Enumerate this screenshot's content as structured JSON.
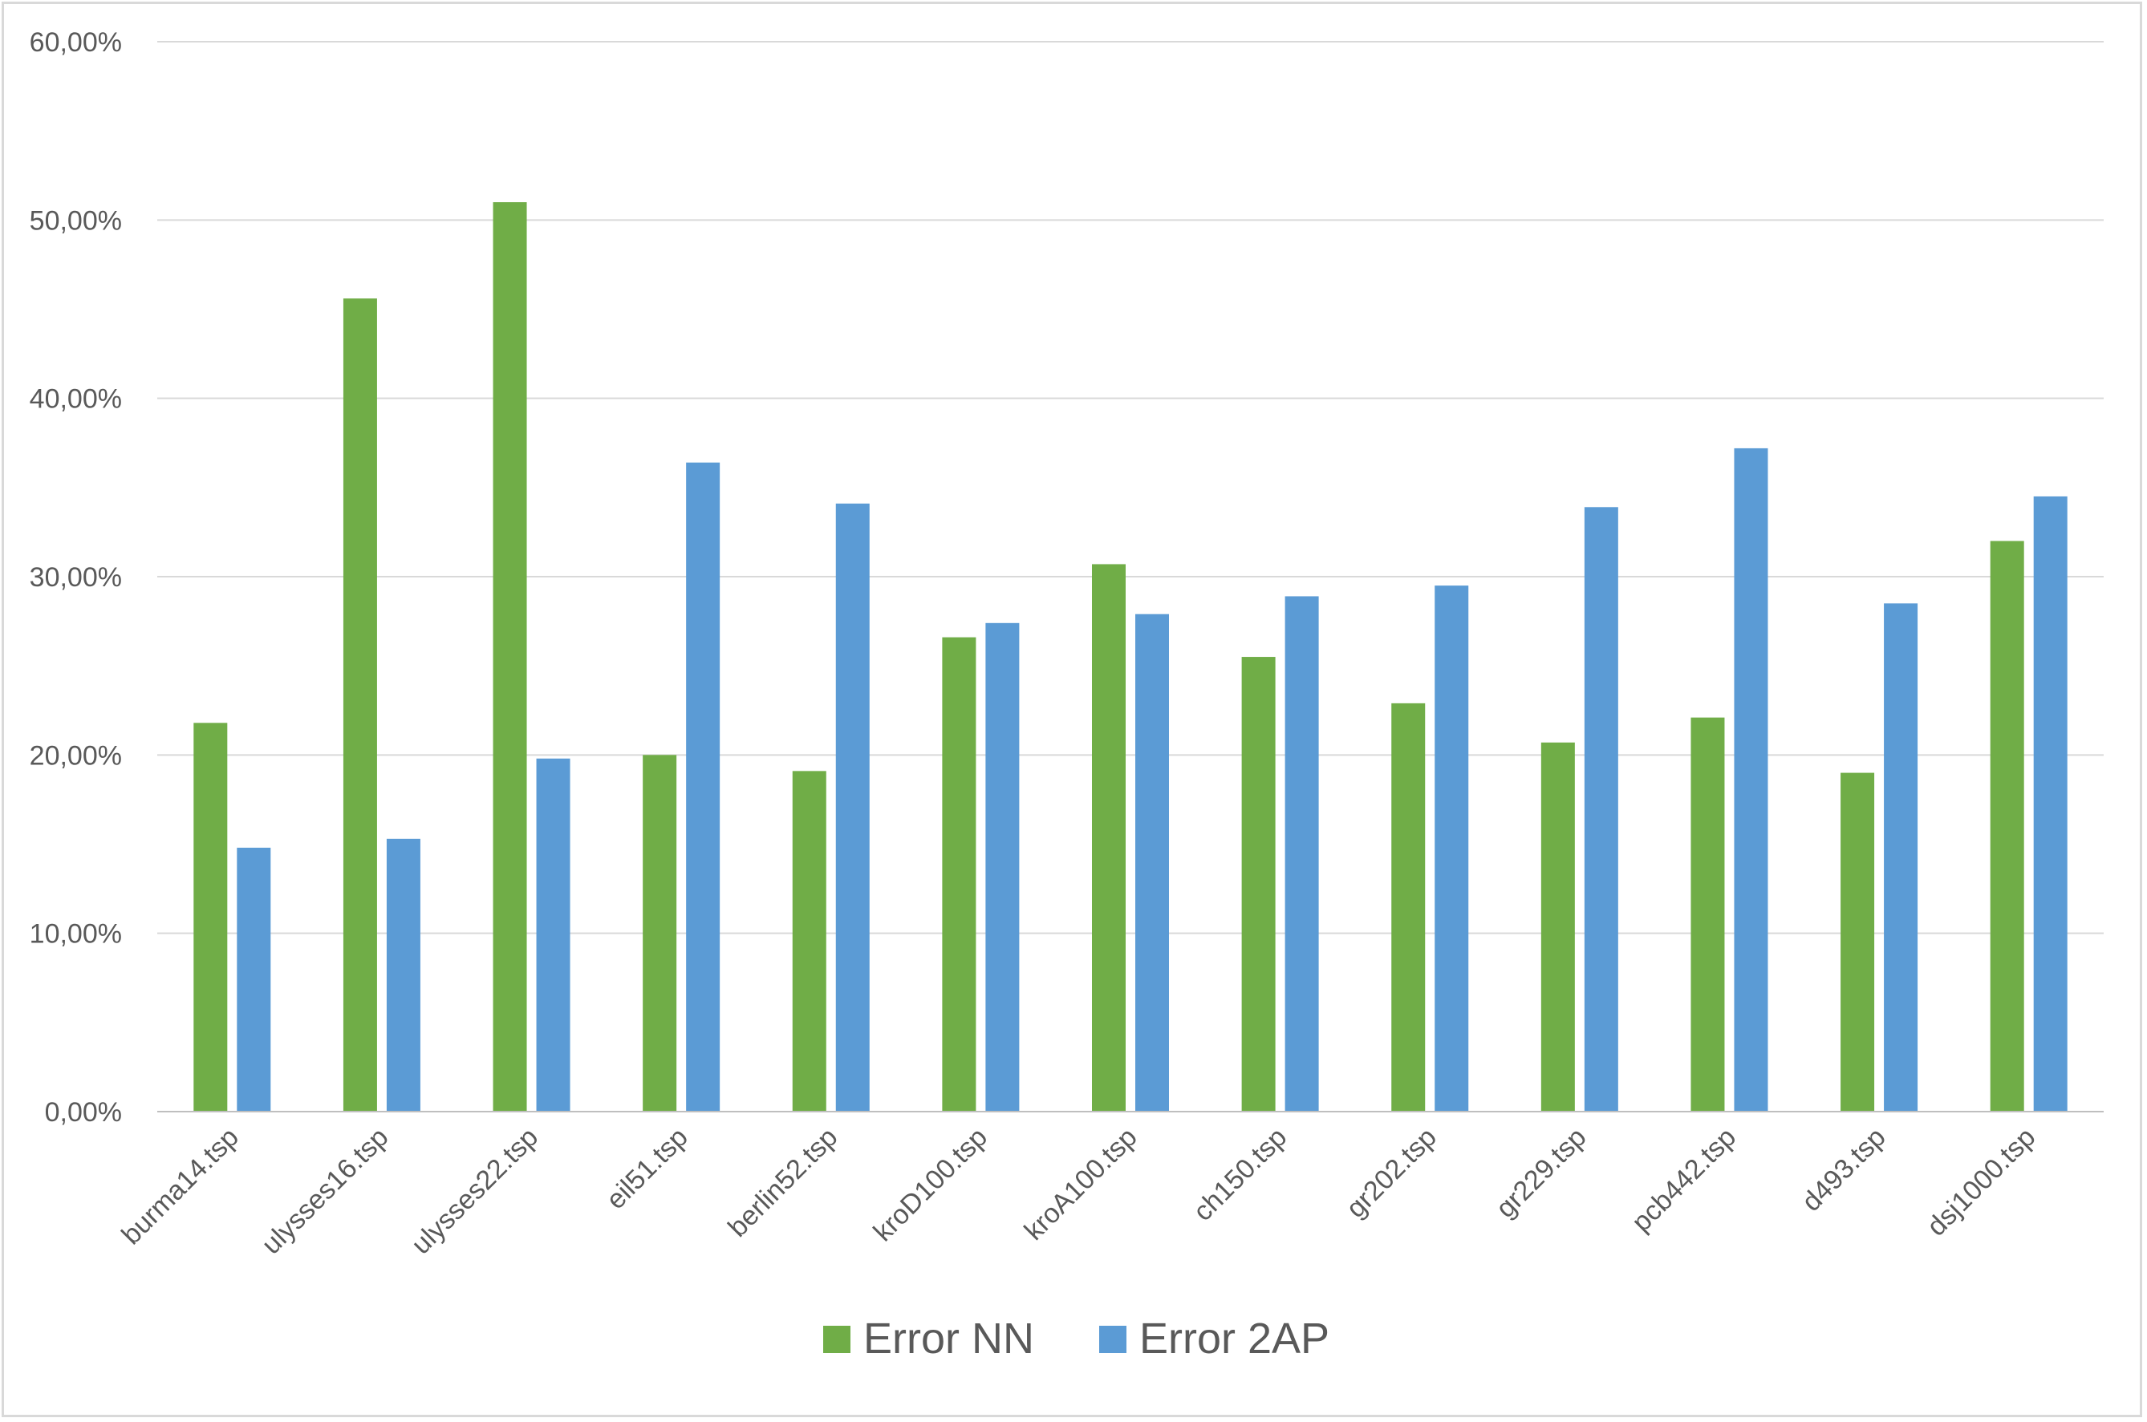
{
  "chart_data": {
    "type": "bar",
    "title": "",
    "xlabel": "",
    "ylabel": "",
    "categories": [
      "burma14.tsp",
      "ulysses16.tsp",
      "ulysses22.tsp",
      "eil51.tsp",
      "berlin52.tsp",
      "kroD100.tsp",
      "kroA100.tsp",
      "ch150.tsp",
      "gr202.tsp",
      "gr229.tsp",
      "pcb442.tsp",
      "d493.tsp",
      "dsj1000.tsp"
    ],
    "series": [
      {
        "name": "Error NN",
        "color": "#70ad47",
        "values": [
          21.8,
          45.6,
          51.0,
          20.0,
          19.1,
          26.6,
          30.7,
          25.5,
          22.9,
          20.7,
          22.1,
          19.0,
          32.0
        ]
      },
      {
        "name": "Error 2AP",
        "color": "#5b9bd5",
        "values": [
          14.8,
          15.3,
          19.8,
          36.4,
          34.1,
          27.4,
          27.9,
          28.9,
          29.5,
          33.9,
          37.2,
          28.5,
          34.5
        ]
      }
    ],
    "ylim": [
      0,
      60
    ],
    "yticks": [
      0,
      10,
      20,
      30,
      40,
      50,
      60
    ],
    "ytick_labels": [
      "0,00%",
      "10,00%",
      "20,00%",
      "30,00%",
      "40,00%",
      "50,00%",
      "60,00%"
    ],
    "grid": true,
    "legend_position": "bottom"
  },
  "colors": {
    "grid": "#d9d9d9",
    "axis": "#bfbfbf",
    "text": "#595959",
    "frame": "#d9d9d9"
  }
}
